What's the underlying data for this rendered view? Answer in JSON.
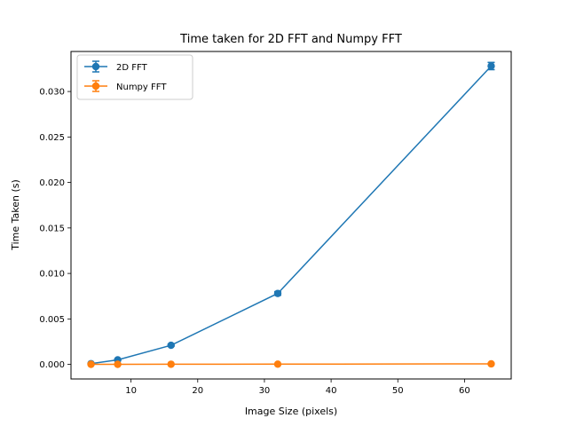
{
  "chart_data": {
    "type": "line",
    "title": "Time taken for 2D FFT and Numpy FFT",
    "xlabel": "Image Size (pixels)",
    "ylabel": "Time Taken (s)",
    "x": [
      4,
      8,
      16,
      32,
      64
    ],
    "xlim": [
      1.0,
      67.0
    ],
    "ylim": [
      -0.0016,
      0.0344
    ],
    "xticks": [
      10,
      20,
      30,
      40,
      50,
      60
    ],
    "yticks": [
      0.0,
      0.005,
      0.01,
      0.015,
      0.02,
      0.025,
      0.03
    ],
    "xtick_labels": [
      "10",
      "20",
      "30",
      "40",
      "50",
      "60"
    ],
    "ytick_labels": [
      "0.000",
      "0.005",
      "0.010",
      "0.015",
      "0.020",
      "0.025",
      "0.030"
    ],
    "legend_position": "upper-left",
    "grid": false,
    "series": [
      {
        "name": "2D FFT",
        "color": "#1f77b4",
        "values": [
          8e-05,
          0.0005,
          0.0021,
          0.0078,
          0.0328
        ],
        "errors": [
          3e-05,
          5e-05,
          0.0001,
          0.0002,
          0.0004
        ]
      },
      {
        "name": "Numpy FFT",
        "color": "#ff7f0e",
        "values": [
          1e-05,
          1e-05,
          2e-05,
          3e-05,
          6e-05
        ],
        "errors": [
          5e-06,
          5e-06,
          5e-06,
          5e-06,
          1e-05
        ]
      }
    ]
  }
}
